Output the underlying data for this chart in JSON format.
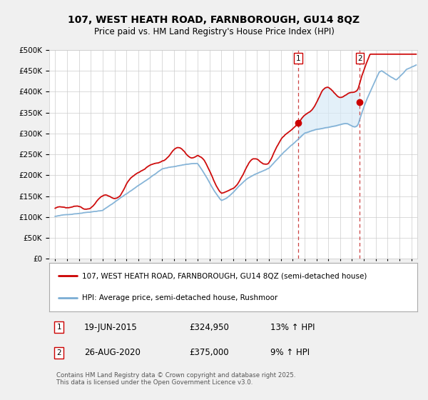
{
  "title": "107, WEST HEATH ROAD, FARNBOROUGH, GU14 8QZ",
  "subtitle": "Price paid vs. HM Land Registry's House Price Index (HPI)",
  "legend_line1": "107, WEST HEATH ROAD, FARNBOROUGH, GU14 8QZ (semi-detached house)",
  "legend_line2": "HPI: Average price, semi-detached house, Rushmoor",
  "footer": "Contains HM Land Registry data © Crown copyright and database right 2025.\nThis data is licensed under the Open Government Licence v3.0.",
  "marker1_date": "19-JUN-2015",
  "marker1_price": "£324,950",
  "marker1_hpi": "13% ↑ HPI",
  "marker2_date": "26-AUG-2020",
  "marker2_price": "£375,000",
  "marker2_hpi": "9% ↑ HPI",
  "red_line_color": "#cc0000",
  "blue_line_color": "#7aadd4",
  "shade_color": "#d8eaf7",
  "marker1_x": 2015.47,
  "marker2_x": 2020.66,
  "marker1_y_red": 324950,
  "marker1_y_blue": 287000,
  "marker2_y_red": 375000,
  "marker2_y_blue": 344000,
  "ylim_min": 0,
  "ylim_max": 500000,
  "xlim_min": 1994.5,
  "xlim_max": 2025.5,
  "background_color": "#f0f0f0",
  "plot_bg_color": "#ffffff",
  "grid_color": "#cccccc",
  "vline_color": "#cc4444"
}
